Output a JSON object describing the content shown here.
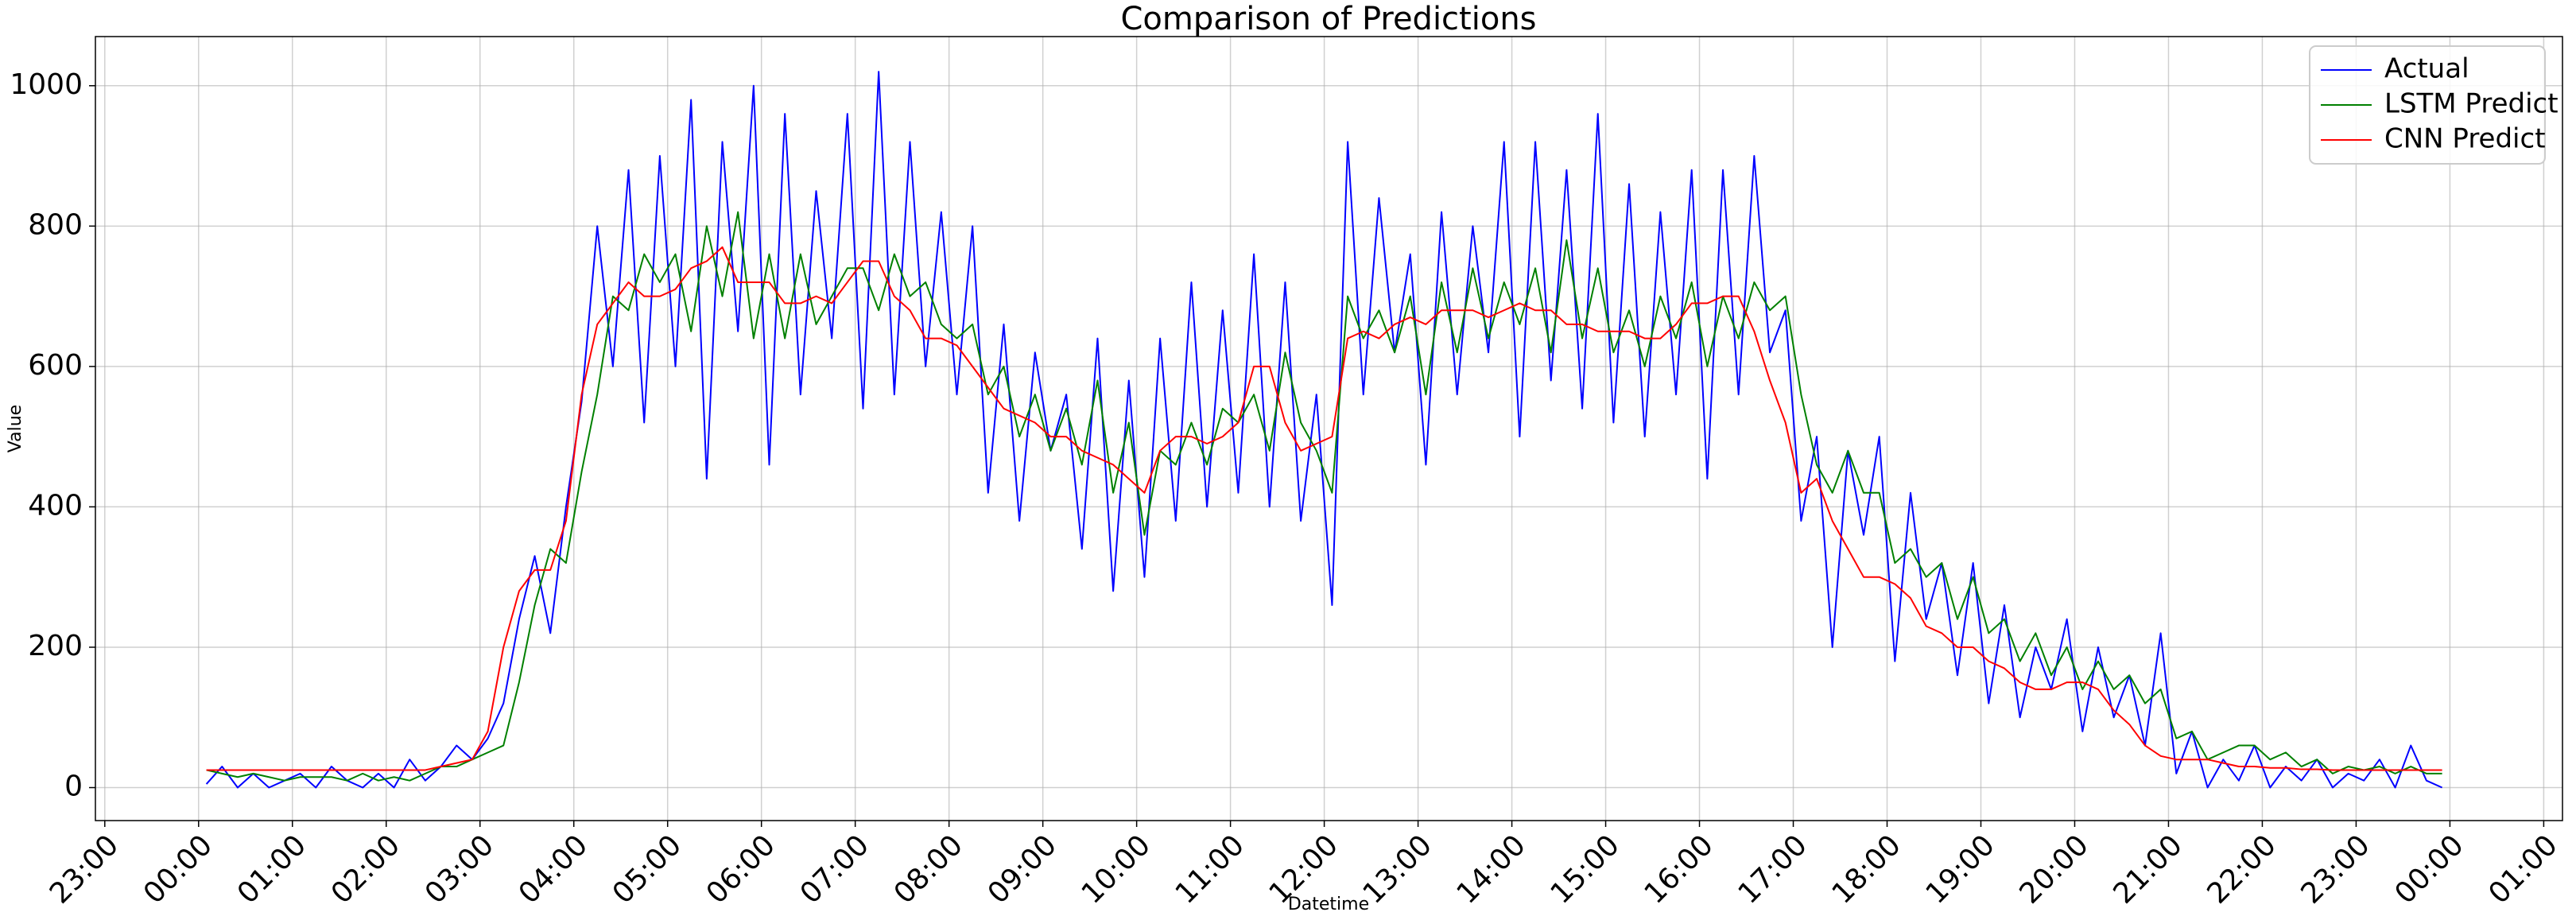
{
  "chart_data": {
    "type": "line",
    "title": "Comparison of Predictions",
    "x_label": "Datetime",
    "y_label": "Value",
    "x": [
      5,
      15,
      25,
      35,
      45,
      55,
      65,
      75,
      85,
      95,
      105,
      115,
      125,
      135,
      145,
      155,
      165,
      175,
      185,
      195,
      205,
      215,
      225,
      235,
      245,
      255,
      265,
      275,
      285,
      295,
      305,
      315,
      325,
      335,
      345,
      355,
      365,
      375,
      385,
      395,
      405,
      415,
      425,
      435,
      445,
      455,
      465,
      475,
      485,
      495,
      505,
      515,
      525,
      535,
      545,
      555,
      565,
      575,
      585,
      595,
      605,
      615,
      625,
      635,
      645,
      655,
      665,
      675,
      685,
      695,
      705,
      715,
      725,
      735,
      745,
      755,
      765,
      775,
      785,
      795,
      805,
      815,
      825,
      835,
      845,
      855,
      865,
      875,
      885,
      895,
      905,
      915,
      925,
      935,
      945,
      955,
      965,
      975,
      985,
      995,
      1005,
      1015,
      1025,
      1035,
      1045,
      1055,
      1065,
      1075,
      1085,
      1095,
      1105,
      1115,
      1125,
      1135,
      1145,
      1155,
      1165,
      1175,
      1185,
      1195,
      1205,
      1215,
      1225,
      1235,
      1245,
      1255,
      1265,
      1275,
      1285,
      1295,
      1305,
      1315,
      1325,
      1335,
      1345,
      1355,
      1365,
      1375,
      1385,
      1395,
      1405,
      1415,
      1425,
      1435
    ],
    "series": [
      {
        "name": "Actual",
        "color": "#0000ff",
        "values": [
          5,
          30,
          0,
          20,
          0,
          10,
          20,
          0,
          30,
          10,
          0,
          20,
          0,
          40,
          10,
          30,
          60,
          40,
          70,
          120,
          240,
          330,
          220,
          400,
          550,
          800,
          600,
          880,
          520,
          900,
          600,
          980,
          440,
          920,
          650,
          1000,
          460,
          960,
          560,
          850,
          640,
          960,
          540,
          1020,
          560,
          920,
          600,
          820,
          560,
          800,
          420,
          660,
          380,
          620,
          480,
          560,
          340,
          640,
          280,
          580,
          300,
          640,
          380,
          720,
          400,
          680,
          420,
          760,
          400,
          720,
          380,
          560,
          260,
          920,
          560,
          840,
          620,
          760,
          460,
          820,
          560,
          800,
          620,
          920,
          500,
          920,
          580,
          880,
          540,
          960,
          520,
          860,
          500,
          820,
          560,
          880,
          440,
          880,
          560,
          900,
          620,
          680,
          380,
          500,
          200,
          480,
          360,
          500,
          180,
          420,
          240,
          320,
          160,
          320,
          120,
          260,
          100,
          200,
          140,
          240,
          80,
          200,
          100,
          160,
          60,
          220,
          20,
          80,
          0,
          40,
          10,
          60,
          0,
          30,
          10,
          40,
          0,
          20,
          10,
          40,
          0,
          60,
          10,
          0
        ]
      },
      {
        "name": "LSTM Predict",
        "color": "#008000",
        "values": [
          25,
          20,
          15,
          20,
          15,
          10,
          15,
          15,
          15,
          10,
          20,
          10,
          15,
          10,
          20,
          30,
          30,
          40,
          50,
          60,
          150,
          260,
          340,
          320,
          450,
          560,
          700,
          680,
          760,
          720,
          760,
          650,
          800,
          700,
          820,
          640,
          760,
          640,
          760,
          660,
          700,
          740,
          740,
          680,
          760,
          700,
          720,
          660,
          640,
          660,
          560,
          600,
          500,
          560,
          480,
          540,
          460,
          580,
          420,
          520,
          360,
          480,
          460,
          520,
          460,
          540,
          520,
          560,
          480,
          620,
          520,
          480,
          420,
          700,
          640,
          680,
          620,
          700,
          560,
          720,
          620,
          740,
          640,
          720,
          660,
          740,
          620,
          780,
          640,
          740,
          620,
          680,
          600,
          700,
          640,
          720,
          600,
          700,
          640,
          720,
          680,
          700,
          560,
          460,
          420,
          480,
          420,
          420,
          320,
          340,
          300,
          320,
          240,
          300,
          220,
          240,
          180,
          220,
          160,
          200,
          140,
          180,
          140,
          160,
          120,
          140,
          70,
          80,
          40,
          50,
          60,
          60,
          40,
          50,
          30,
          40,
          20,
          30,
          25,
          30,
          20,
          30,
          20,
          20
        ]
      },
      {
        "name": "CNN Predict",
        "color": "#ff0000",
        "values": [
          25,
          25,
          25,
          25,
          25,
          25,
          25,
          25,
          25,
          25,
          25,
          25,
          25,
          25,
          25,
          30,
          35,
          40,
          80,
          200,
          280,
          310,
          310,
          380,
          560,
          660,
          690,
          720,
          700,
          700,
          710,
          740,
          750,
          770,
          720,
          720,
          720,
          690,
          690,
          700,
          690,
          720,
          750,
          750,
          700,
          680,
          640,
          640,
          630,
          600,
          570,
          540,
          530,
          520,
          500,
          500,
          480,
          470,
          460,
          440,
          420,
          480,
          500,
          500,
          490,
          500,
          520,
          600,
          600,
          520,
          480,
          490,
          500,
          640,
          650,
          640,
          660,
          670,
          660,
          680,
          680,
          680,
          670,
          680,
          690,
          680,
          680,
          660,
          660,
          650,
          650,
          650,
          640,
          640,
          660,
          690,
          690,
          700,
          700,
          650,
          580,
          520,
          420,
          440,
          380,
          340,
          300,
          300,
          290,
          270,
          230,
          220,
          200,
          200,
          180,
          170,
          150,
          140,
          140,
          150,
          150,
          140,
          110,
          90,
          60,
          45,
          40,
          40,
          40,
          35,
          30,
          30,
          28,
          28,
          26,
          26,
          25,
          25,
          25,
          25,
          25,
          25,
          25,
          25
        ]
      }
    ],
    "xlim": [
      -66,
      1512
    ],
    "xticks": [
      {
        "value": -60,
        "label": "23:00"
      },
      {
        "value": 0,
        "label": "00:00"
      },
      {
        "value": 60,
        "label": "01:00"
      },
      {
        "value": 120,
        "label": "02:00"
      },
      {
        "value": 180,
        "label": "03:00"
      },
      {
        "value": 240,
        "label": "04:00"
      },
      {
        "value": 300,
        "label": "05:00"
      },
      {
        "value": 360,
        "label": "06:00"
      },
      {
        "value": 420,
        "label": "07:00"
      },
      {
        "value": 480,
        "label": "08:00"
      },
      {
        "value": 540,
        "label": "09:00"
      },
      {
        "value": 600,
        "label": "10:00"
      },
      {
        "value": 660,
        "label": "11:00"
      },
      {
        "value": 720,
        "label": "12:00"
      },
      {
        "value": 780,
        "label": "13:00"
      },
      {
        "value": 840,
        "label": "14:00"
      },
      {
        "value": 900,
        "label": "15:00"
      },
      {
        "value": 960,
        "label": "16:00"
      },
      {
        "value": 1020,
        "label": "17:00"
      },
      {
        "value": 1080,
        "label": "18:00"
      },
      {
        "value": 1140,
        "label": "19:00"
      },
      {
        "value": 1200,
        "label": "20:00"
      },
      {
        "value": 1260,
        "label": "21:00"
      },
      {
        "value": 1320,
        "label": "22:00"
      },
      {
        "value": 1380,
        "label": "23:00"
      },
      {
        "value": 1440,
        "label": "00:00"
      },
      {
        "value": 1500,
        "label": "01:00"
      }
    ],
    "ylim": [
      -47,
      1070
    ],
    "yticks": [
      0,
      200,
      400,
      600,
      800,
      1000
    ],
    "grid": true,
    "legend": "upper right"
  }
}
